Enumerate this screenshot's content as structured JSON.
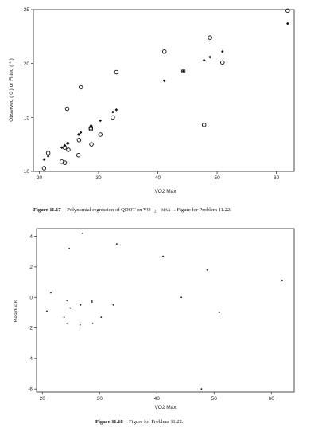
{
  "chart_data": [
    {
      "type": "scatter",
      "title": "",
      "xlabel": "VO2 Max",
      "ylabel": "Observed ( 0 ) or Fitted ( * )",
      "xlim": [
        19,
        63
      ],
      "ylim": [
        10,
        25
      ],
      "xticks": [
        "20",
        "30",
        "40",
        "50",
        "60"
      ],
      "yticks": [
        "10",
        "15",
        "20",
        "25"
      ],
      "grid": false,
      "series": [
        {
          "marker": "open-circle",
          "points": [
            [
              20.8,
              10.3
            ],
            [
              21.5,
              11.7
            ],
            [
              23.8,
              10.9
            ],
            [
              24.3,
              12.2
            ],
            [
              24.3,
              10.8
            ],
            [
              24.7,
              15.8
            ],
            [
              24.9,
              12.0
            ],
            [
              26.6,
              11.5
            ],
            [
              26.7,
              12.9
            ],
            [
              27.0,
              17.8
            ],
            [
              28.7,
              14.0
            ],
            [
              28.7,
              13.9
            ],
            [
              28.8,
              12.5
            ],
            [
              30.3,
              13.4
            ],
            [
              32.4,
              15.0
            ],
            [
              33.0,
              19.2
            ],
            [
              41.1,
              21.1
            ],
            [
              44.3,
              19.3
            ],
            [
              47.8,
              14.3
            ],
            [
              48.8,
              22.4
            ],
            [
              50.9,
              20.1
            ],
            [
              61.9,
              24.9
            ]
          ]
        },
        {
          "marker": "filled-diamond",
          "points": [
            [
              20.8,
              11.1
            ],
            [
              21.5,
              11.4
            ],
            [
              23.8,
              12.2
            ],
            [
              24.3,
              12.4
            ],
            [
              24.3,
              12.4
            ],
            [
              24.7,
              12.6
            ],
            [
              24.9,
              12.6
            ],
            [
              26.6,
              13.4
            ],
            [
              26.7,
              13.4
            ],
            [
              27.0,
              13.6
            ],
            [
              28.7,
              14.2
            ],
            [
              28.7,
              14.2
            ],
            [
              28.8,
              14.2
            ],
            [
              30.3,
              14.7
            ],
            [
              32.4,
              15.5
            ],
            [
              33.0,
              15.7
            ],
            [
              41.1,
              18.4
            ],
            [
              44.3,
              19.3
            ],
            [
              47.8,
              20.3
            ],
            [
              48.8,
              20.6
            ],
            [
              50.9,
              21.1
            ],
            [
              61.9,
              23.7
            ]
          ]
        }
      ],
      "caption": {
        "label": "Figure 11.17",
        "text_a": "Polynomial regression of QDOT on VO",
        "sub": "2",
        "text_b": "MAX",
        "text_c": ". Figure for Problem 11.22."
      }
    },
    {
      "type": "scatter",
      "title": "",
      "xlabel": "VO2 Max",
      "ylabel": "Residuals",
      "xlim": [
        19,
        64
      ],
      "ylim": [
        -6.2,
        4.5
      ],
      "xticks": [
        "20",
        "30",
        "40",
        "50",
        "60"
      ],
      "yticks": [
        "4",
        "2",
        "0",
        "-2",
        "-4",
        "-6"
      ],
      "grid": false,
      "series": [
        {
          "marker": "dot",
          "points": [
            [
              20.8,
              -0.9
            ],
            [
              21.5,
              0.3
            ],
            [
              23.8,
              -1.3
            ],
            [
              24.3,
              -0.2
            ],
            [
              24.3,
              -1.7
            ],
            [
              24.7,
              3.2
            ],
            [
              24.9,
              -0.7
            ],
            [
              26.6,
              -1.8
            ],
            [
              26.7,
              -0.5
            ],
            [
              27.0,
              4.2
            ],
            [
              28.7,
              -0.2
            ],
            [
              28.7,
              -0.3
            ],
            [
              28.8,
              -1.7
            ],
            [
              30.3,
              -1.3
            ],
            [
              32.4,
              -0.5
            ],
            [
              33.0,
              3.5
            ],
            [
              41.1,
              2.7
            ],
            [
              44.3,
              0.0
            ],
            [
              47.8,
              -6.0
            ],
            [
              48.8,
              1.8
            ],
            [
              50.9,
              -1.0
            ],
            [
              61.9,
              1.1
            ]
          ]
        }
      ],
      "caption": {
        "label": "Figure 11.18",
        "text": "Figure for Problem 11.22."
      }
    }
  ]
}
